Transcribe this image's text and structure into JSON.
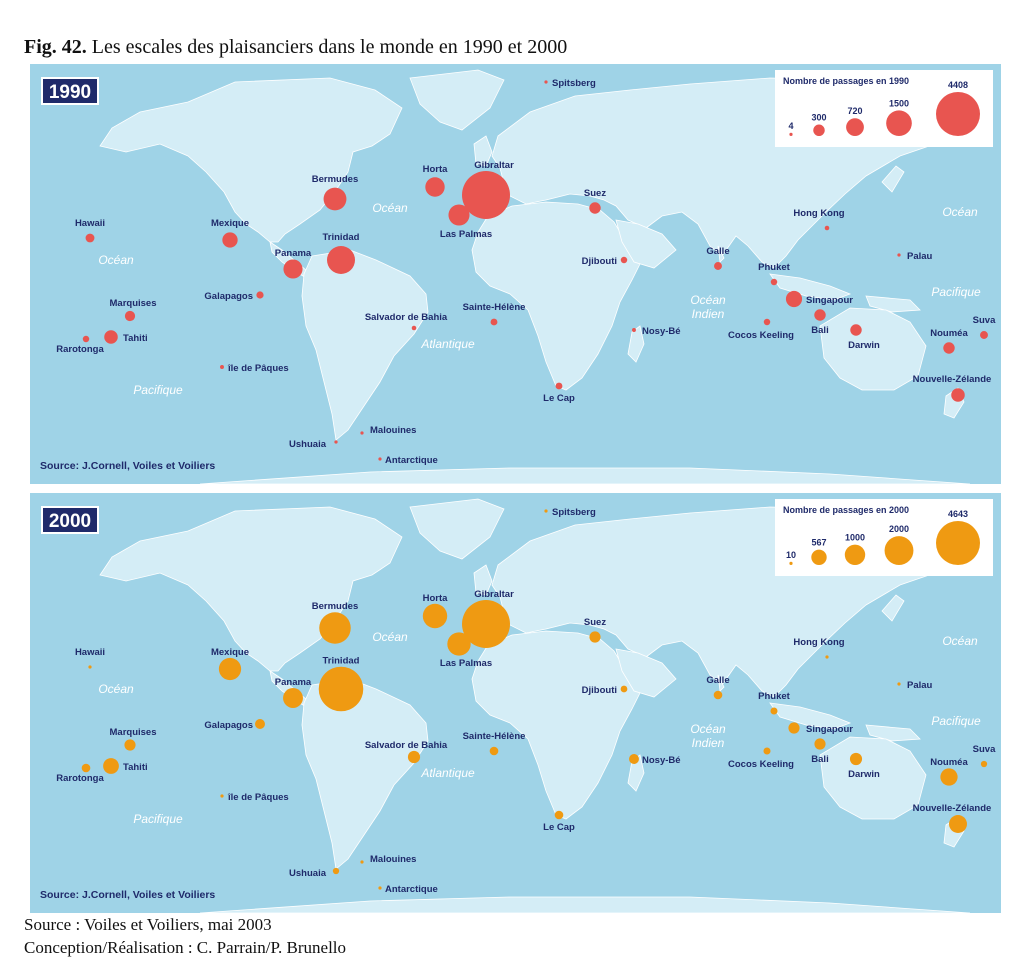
{
  "figure": {
    "number_label": "Fig. 42.",
    "title": "Les escales des plaisanciers dans le monde en 1990 et 2000"
  },
  "colors": {
    "ocean": "#9fd3e7",
    "land": "#d4edf6",
    "border": "#ffffff",
    "label": "#1f2a6a",
    "ocean_label": "#ffffff",
    "badge": "#1f2a6a",
    "color_1990": "#e85550",
    "color_2000": "#ef9a12"
  },
  "ocean_labels": [
    "Océan",
    "Océan",
    "Océan",
    "Océan Indien",
    "Pacifique",
    "Pacifique",
    "Atlantique"
  ],
  "maps": [
    {
      "year": "1990",
      "source_note": "Source: J.Cornell, Voiles et Voiliers",
      "legend": {
        "title": "Nombre de passages en 1990",
        "items": [
          {
            "label": "4",
            "value": 4
          },
          {
            "label": "300",
            "value": 300
          },
          {
            "label": "720",
            "value": 720
          },
          {
            "label": "1500",
            "value": 1500
          },
          {
            "label": "4408",
            "value": 4408
          }
        ]
      },
      "stops": [
        {
          "name": "Spitsberg",
          "value": 4
        },
        {
          "name": "Hawaii",
          "value": 150
        },
        {
          "name": "Mexique",
          "value": 450
        },
        {
          "name": "Bermudes",
          "value": 1000
        },
        {
          "name": "Panama",
          "value": 700
        },
        {
          "name": "Trinidad",
          "value": 1500
        },
        {
          "name": "Galapagos",
          "value": 100
        },
        {
          "name": "Marquises",
          "value": 200
        },
        {
          "name": "Tahiti",
          "value": 350
        },
        {
          "name": "Rarotonga",
          "value": 80
        },
        {
          "name": "île de Pâques",
          "value": 30
        },
        {
          "name": "Horta",
          "value": 720
        },
        {
          "name": "Gibraltar",
          "value": 4408
        },
        {
          "name": "Las Palmas",
          "value": 850
        },
        {
          "name": "Salvador de Bahia",
          "value": 40
        },
        {
          "name": "Sainte-Hélène",
          "value": 90
        },
        {
          "name": "Ushuaia",
          "value": 20
        },
        {
          "name": "Malouines",
          "value": 10
        },
        {
          "name": "Antarctique",
          "value": 10
        },
        {
          "name": "Le Cap",
          "value": 90
        },
        {
          "name": "Suez",
          "value": 250
        },
        {
          "name": "Djibouti",
          "value": 80
        },
        {
          "name": "Nosy-Bé",
          "value": 30
        },
        {
          "name": "Galle",
          "value": 120
        },
        {
          "name": "Hong Kong",
          "value": 40
        },
        {
          "name": "Phuket",
          "value": 80
        },
        {
          "name": "Singapour",
          "value": 500
        },
        {
          "name": "Bali",
          "value": 250
        },
        {
          "name": "Cocos Keeling",
          "value": 80
        },
        {
          "name": "Darwin",
          "value": 250
        },
        {
          "name": "Palau",
          "value": 20
        },
        {
          "name": "Nouméa",
          "value": 250
        },
        {
          "name": "Suva",
          "value": 120
        },
        {
          "name": "Nouvelle-Zélande",
          "value": 350
        }
      ]
    },
    {
      "year": "2000",
      "source_note": "Source: J.Cornell, Voiles et Voiliers",
      "legend": {
        "title": "Nombre de passages en 2000",
        "items": [
          {
            "label": "10",
            "value": 10
          },
          {
            "label": "567",
            "value": 567
          },
          {
            "label": "1000",
            "value": 1000
          },
          {
            "label": "2000",
            "value": 2000
          },
          {
            "label": "4643",
            "value": 4643
          }
        ]
      },
      "stops": [
        {
          "name": "Spitsberg",
          "value": 10
        },
        {
          "name": "Hawaii",
          "value": 20
        },
        {
          "name": "Mexique",
          "value": 1000
        },
        {
          "name": "Bermudes",
          "value": 2000
        },
        {
          "name": "Panama",
          "value": 800
        },
        {
          "name": "Trinidad",
          "value": 4000
        },
        {
          "name": "Galapagos",
          "value": 200
        },
        {
          "name": "Marquises",
          "value": 250
        },
        {
          "name": "Tahiti",
          "value": 500
        },
        {
          "name": "Rarotonga",
          "value": 150
        },
        {
          "name": "île de Pâques",
          "value": 20
        },
        {
          "name": "Horta",
          "value": 1200
        },
        {
          "name": "Gibraltar",
          "value": 4643
        },
        {
          "name": "Las Palmas",
          "value": 1100
        },
        {
          "name": "Salvador de Bahia",
          "value": 300
        },
        {
          "name": "Sainte-Hélène",
          "value": 150
        },
        {
          "name": "Ushuaia",
          "value": 80
        },
        {
          "name": "Malouines",
          "value": 15
        },
        {
          "name": "Antarctique",
          "value": 15
        },
        {
          "name": "Le Cap",
          "value": 150
        },
        {
          "name": "Suez",
          "value": 250
        },
        {
          "name": "Djibouti",
          "value": 90
        },
        {
          "name": "Nosy-Bé",
          "value": 200
        },
        {
          "name": "Galle",
          "value": 150
        },
        {
          "name": "Hong Kong",
          "value": 20
        },
        {
          "name": "Phuket",
          "value": 100
        },
        {
          "name": "Singapour",
          "value": 250
        },
        {
          "name": "Bali",
          "value": 250
        },
        {
          "name": "Cocos Keeling",
          "value": 100
        },
        {
          "name": "Darwin",
          "value": 300
        },
        {
          "name": "Palau",
          "value": 20
        },
        {
          "name": "Nouméa",
          "value": 600
        },
        {
          "name": "Suva",
          "value": 80
        },
        {
          "name": "Nouvelle-Zélande",
          "value": 650
        }
      ]
    }
  ],
  "footer": {
    "source": "Source : Voiles et Voiliers, mai 2003",
    "credits": "Conception/Réalisation : C. Parrain/P. Brunello"
  }
}
